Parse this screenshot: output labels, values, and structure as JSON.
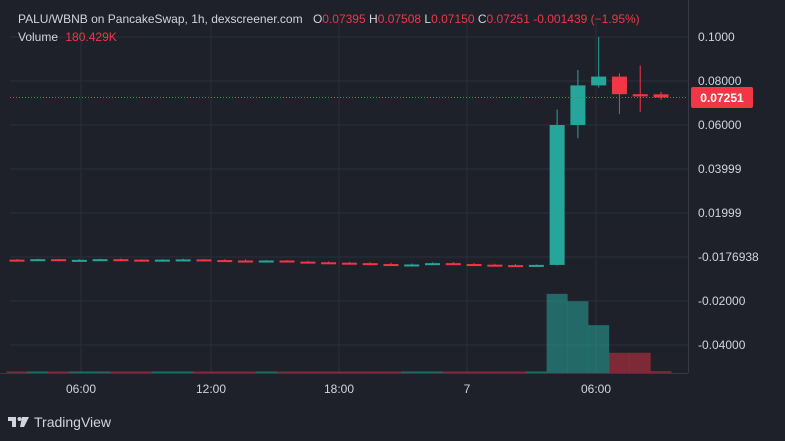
{
  "header": {
    "title": "PALU/WBNB on PancakeSwap, 1h, dexscreener.com",
    "o_key": "O",
    "o_val": "0.07395",
    "h_key": "H",
    "h_val": "0.07508",
    "l_key": "L",
    "l_val": "0.07150",
    "c_key": "C",
    "c_val": "0.07251",
    "change": "-0.001439 (−1.95%)"
  },
  "volume": {
    "label": "Volume",
    "value": "180.429K"
  },
  "last_price_label": "0.07251",
  "brand": {
    "name": "TradingView",
    "icon": "tradingview-logo-icon"
  },
  "colors": {
    "up": "#26a69a",
    "down": "#f23645",
    "background": "#1f212a",
    "grid": "#2a2e39"
  },
  "chart_data": {
    "type": "candlestick",
    "title": "PALU/WBNB on PancakeSwap, 1h, dexscreener.com",
    "y_ticks": [
      "0.1000",
      "0.08000",
      "0.06000",
      "0.03999",
      "0.01999",
      "-0.0176938",
      "-0.02000",
      "-0.04000"
    ],
    "x_ticks": [
      "06:00",
      "12:00",
      "18:00",
      "7",
      "06:00"
    ],
    "last_price": 0.07251,
    "price_range": [
      -0.01769,
      0.1
    ],
    "candles": [
      {
        "o": -0.0012,
        "h": -0.0009,
        "l": -0.0018,
        "c": -0.0014
      },
      {
        "o": -0.0014,
        "h": -0.0008,
        "l": -0.0017,
        "c": -0.001
      },
      {
        "o": -0.001,
        "h": -0.0009,
        "l": -0.0019,
        "c": -0.0016
      },
      {
        "o": -0.0016,
        "h": -0.001,
        "l": -0.0019,
        "c": -0.0013
      },
      {
        "o": -0.0013,
        "h": -0.0008,
        "l": -0.0017,
        "c": -0.001
      },
      {
        "o": -0.001,
        "h": -0.0007,
        "l": -0.0015,
        "c": -0.0012
      },
      {
        "o": -0.0012,
        "h": -0.001,
        "l": -0.002,
        "c": -0.0017
      },
      {
        "o": -0.0017,
        "h": -0.001,
        "l": -0.0019,
        "c": -0.0012
      },
      {
        "o": -0.0012,
        "h": -0.0008,
        "l": -0.0016,
        "c": -0.0011
      },
      {
        "o": -0.0011,
        "h": -0.0009,
        "l": -0.0017,
        "c": -0.0014
      },
      {
        "o": -0.0014,
        "h": -0.001,
        "l": -0.0018,
        "c": -0.0016
      },
      {
        "o": -0.0016,
        "h": -0.0011,
        "l": -0.0021,
        "c": -0.0019
      },
      {
        "o": -0.0019,
        "h": -0.0014,
        "l": -0.0022,
        "c": -0.0016
      },
      {
        "o": -0.0016,
        "h": -0.0014,
        "l": -0.0023,
        "c": -0.0021
      },
      {
        "o": -0.0021,
        "h": -0.0017,
        "l": -0.0026,
        "c": -0.0024
      },
      {
        "o": -0.0024,
        "h": -0.002,
        "l": -0.0028,
        "c": -0.0026
      },
      {
        "o": -0.0026,
        "h": -0.0022,
        "l": -0.003,
        "c": -0.0028
      },
      {
        "o": -0.0028,
        "h": -0.0024,
        "l": -0.0034,
        "c": -0.0032
      },
      {
        "o": -0.0032,
        "h": -0.0026,
        "l": -0.004,
        "c": -0.0038
      },
      {
        "o": -0.0038,
        "h": -0.003,
        "l": -0.0042,
        "c": -0.0034
      },
      {
        "o": -0.0034,
        "h": -0.0025,
        "l": -0.0036,
        "c": -0.0028
      },
      {
        "o": -0.0028,
        "h": -0.0023,
        "l": -0.0034,
        "c": -0.0032
      },
      {
        "o": -0.0032,
        "h": -0.0028,
        "l": -0.0038,
        "c": -0.0035
      },
      {
        "o": -0.0035,
        "h": -0.0031,
        "l": -0.004,
        "c": -0.0037
      },
      {
        "o": -0.0037,
        "h": -0.0032,
        "l": -0.0042,
        "c": -0.0039
      },
      {
        "o": -0.0039,
        "h": -0.0034,
        "l": -0.0041,
        "c": -0.0036
      },
      {
        "o": -0.0036,
        "h": 0.067,
        "l": -0.0038,
        "c": 0.06
      },
      {
        "o": 0.06,
        "h": 0.085,
        "l": 0.054,
        "c": 0.078
      },
      {
        "o": 0.078,
        "h": 0.1,
        "l": 0.077,
        "c": 0.082
      },
      {
        "o": 0.082,
        "h": 0.0835,
        "l": 0.065,
        "c": 0.074
      },
      {
        "o": 0.074,
        "h": 0.087,
        "l": 0.066,
        "c": 0.073
      },
      {
        "o": 0.07395,
        "h": 0.07508,
        "l": 0.0715,
        "c": 0.07251
      }
    ],
    "volumes": [
      0.008,
      0.006,
      0.007,
      0.005,
      0.008,
      0.006,
      0.007,
      0.005,
      0.006,
      0.006,
      0.007,
      0.006,
      0.005,
      0.007,
      0.008,
      0.006,
      0.005,
      0.006,
      0.004,
      0.005,
      0.004,
      0.006,
      0.007,
      0.008,
      0.006,
      0.01,
      0.86,
      0.78,
      0.52,
      0.22,
      0.22,
      0.02
    ]
  }
}
